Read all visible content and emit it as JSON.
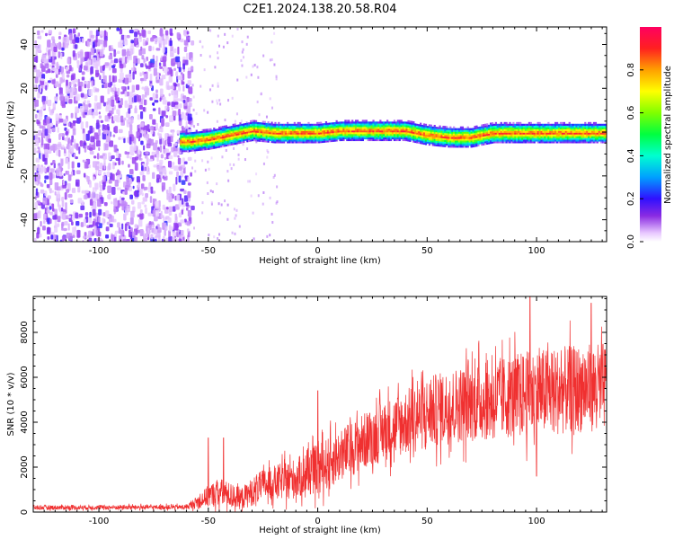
{
  "title": "C2E1.2024.138.20.58.R04",
  "chart_data": [
    {
      "type": "heatmap",
      "xlabel": "Height of straight line (km)",
      "ylabel": "Frequency (Hz)",
      "xlim": [
        -130,
        132
      ],
      "ylim": [
        -50,
        48
      ],
      "xticks": [
        -100,
        -50,
        0,
        50,
        100
      ],
      "yticks": [
        -40,
        -20,
        0,
        20,
        40
      ],
      "ridge": {
        "x": [
          -60,
          -50,
          -40,
          -30,
          -20,
          -10,
          0,
          10,
          20,
          30,
          40,
          50,
          60,
          70,
          80,
          90,
          100,
          110,
          120,
          132
        ],
        "y": [
          -4,
          -3,
          -1,
          1,
          0,
          0,
          0,
          1,
          1,
          1,
          1,
          -1,
          -2,
          -2,
          0,
          0,
          0,
          0,
          0,
          0
        ]
      },
      "colorbar": {
        "label": "Normalized spectral amplitude",
        "range": [
          0,
          1
        ],
        "ticks": [
          0.0,
          0.2,
          0.4,
          0.6,
          0.8
        ]
      }
    },
    {
      "type": "line",
      "xlabel": "Height of straight line (km)",
      "ylabel": "SNR (10 * v/v)",
      "xlim": [
        -130,
        132
      ],
      "ylim": [
        0,
        9600
      ],
      "xticks": [
        -100,
        -50,
        0,
        50,
        100
      ],
      "yticks": [
        0,
        2000,
        4000,
        6000,
        8000
      ],
      "line_color": "#f03030",
      "envelope": {
        "x": [
          -130,
          -60,
          -55,
          -50,
          -45,
          -40,
          -35,
          -30,
          -25,
          -20,
          -15,
          -10,
          -5,
          0,
          10,
          20,
          30,
          40,
          50,
          60,
          70,
          80,
          90,
          100,
          110,
          120,
          132
        ],
        "mean": [
          200,
          220,
          450,
          700,
          900,
          750,
          600,
          900,
          1200,
          1300,
          1400,
          1500,
          1700,
          1900,
          2500,
          3100,
          3600,
          4000,
          4400,
          4700,
          4900,
          5000,
          5200,
          5300,
          5400,
          5500,
          5600
        ],
        "spread": [
          150,
          150,
          400,
          700,
          900,
          800,
          700,
          900,
          1000,
          1100,
          1200,
          1300,
          1400,
          1600,
          1700,
          1800,
          1900,
          2100,
          2300,
          2400,
          2500,
          2600,
          2700,
          2800,
          2800,
          2800,
          2800
        ]
      },
      "peaks": [
        {
          "x": -50,
          "y": 3300
        },
        {
          "x": -43,
          "y": 3300
        },
        {
          "x": 0,
          "y": 5400
        },
        {
          "x": 97,
          "y": 9600
        },
        {
          "x": 125,
          "y": 9300
        },
        {
          "x": 100,
          "y": 1600
        }
      ]
    }
  ]
}
